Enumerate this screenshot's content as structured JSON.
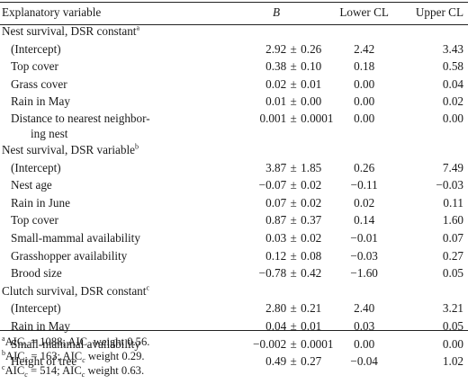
{
  "header": {
    "variable": "Explanatory variable",
    "b": "B",
    "lower": "Lower CL",
    "upper": "Upper CL"
  },
  "sections": [
    {
      "title": "Nest survival, DSR constant",
      "note_mark": "a",
      "rows": [
        {
          "name": "(Intercept)",
          "b": "2.92",
          "se": "0.26",
          "lower": "2.42",
          "upper": "3.43"
        },
        {
          "name": "Top cover",
          "b": "0.38",
          "se": "0.10",
          "lower": "0.18",
          "upper": "0.58"
        },
        {
          "name": "Grass cover",
          "b": "0.02",
          "se": "0.01",
          "lower": "0.00",
          "upper": "0.04"
        },
        {
          "name": "Rain in May",
          "b": "0.01",
          "se": "0.00",
          "lower": "0.00",
          "upper": "0.02"
        },
        {
          "name": "Distance to nearest neighbor-",
          "name2": "ing nest",
          "b": "0.001",
          "se": "0.0001",
          "lower": "0.00",
          "upper": "0.00"
        }
      ]
    },
    {
      "title": "Nest survival, DSR variable",
      "note_mark": "b",
      "rows": [
        {
          "name": "(Intercept)",
          "b": "3.87",
          "se": "1.85",
          "lower": "0.26",
          "upper": "7.49"
        },
        {
          "name": "Nest age",
          "b": "−0.07",
          "se": "0.02",
          "lower": "−0.11",
          "upper": "−0.03"
        },
        {
          "name": "Rain in June",
          "b": "0.07",
          "se": "0.02",
          "lower": "0.02",
          "upper": "0.11"
        },
        {
          "name": "Top cover",
          "b": "0.87",
          "se": "0.37",
          "lower": "0.14",
          "upper": "1.60"
        },
        {
          "name": "Small-mammal availability",
          "b": "0.03",
          "se": "0.02",
          "lower": "−0.01",
          "upper": "0.07"
        },
        {
          "name": "Grasshopper availability",
          "b": "0.12",
          "se": "0.08",
          "lower": "−0.03",
          "upper": "0.27"
        },
        {
          "name": "Brood size",
          "b": "−0.78",
          "se": "0.42",
          "lower": "−1.60",
          "upper": "0.05"
        }
      ]
    },
    {
      "title": "Clutch survival, DSR constant",
      "note_mark": "c",
      "rows": [
        {
          "name": "(Intercept)",
          "b": "2.80",
          "se": "0.21",
          "lower": "2.40",
          "upper": "3.21"
        },
        {
          "name": "Rain in May",
          "b": "0.04",
          "se": "0.01",
          "lower": "0.03",
          "upper": "0.05"
        },
        {
          "name": "Small-mammal availability",
          "b": "−0.002",
          "se": "0.0001",
          "lower": "0.00",
          "upper": "0.00"
        },
        {
          "name": "Height of tree",
          "b": "0.49",
          "se": "0.27",
          "lower": "−0.04",
          "upper": "1.02"
        }
      ]
    }
  ],
  "footnotes": [
    {
      "mark": "a",
      "prefix": "AIC",
      "sub": "c",
      "value": " = 1088; AIC",
      "sub2": "c",
      "tail": " weight 0.56."
    },
    {
      "mark": "b",
      "prefix": "AIC",
      "sub": "c",
      "value": " = 163; AIC",
      "sub2": "c",
      "tail": " weight 0.29."
    },
    {
      "mark": "c",
      "prefix": "AIC",
      "sub": "c",
      "value": " = 514; AIC",
      "sub2": "c",
      "tail": " weight 0.63."
    }
  ],
  "symbols": {
    "plus_minus": "±"
  }
}
